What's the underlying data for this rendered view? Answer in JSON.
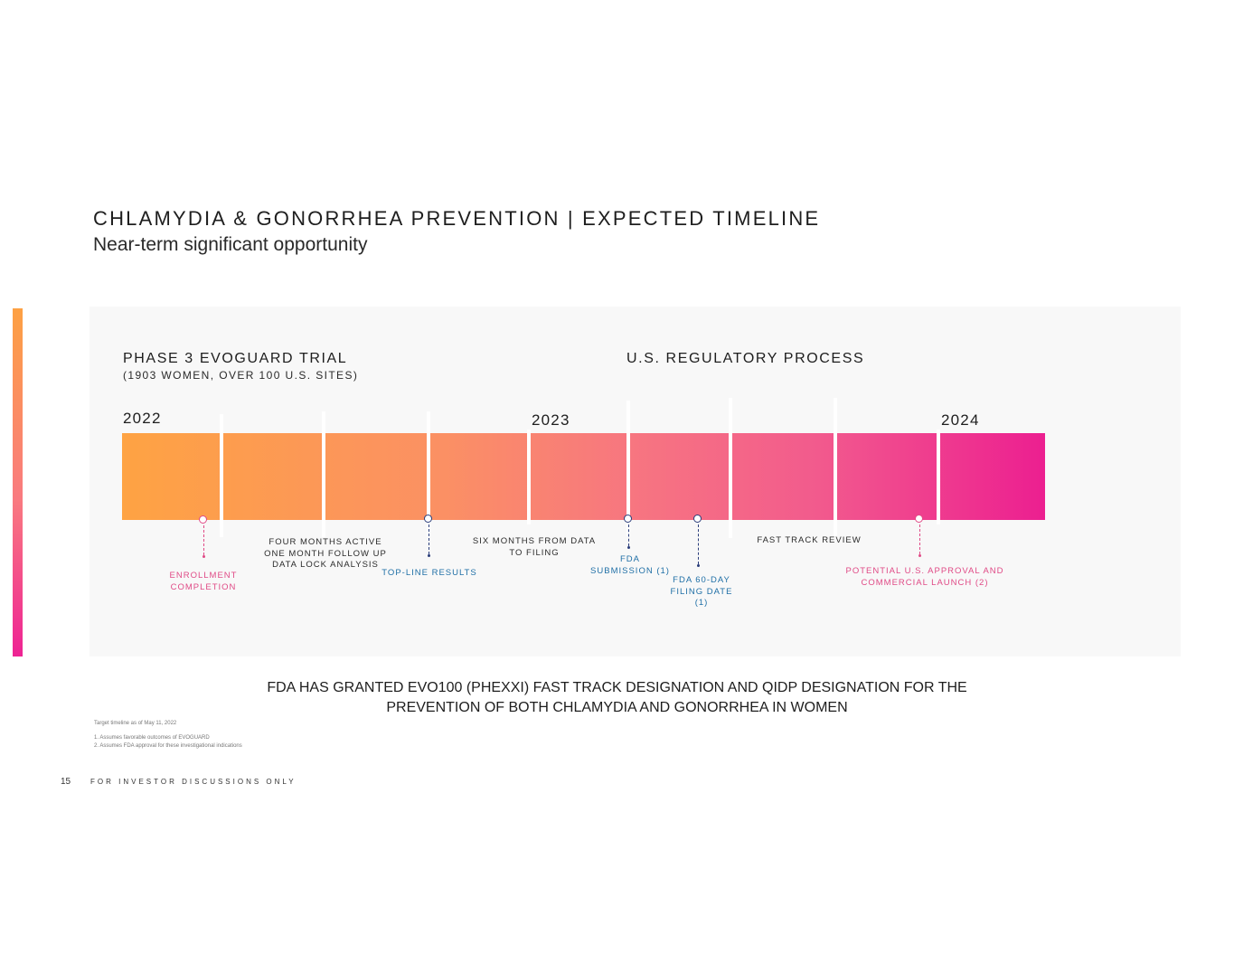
{
  "header": {
    "title": "CHLAMYDIA & GONORRHEA PREVENTION | EXPECTED TIMELINE",
    "subtitle": "Near-term significant opportunity"
  },
  "timeline": {
    "phase_title": "PHASE 3 EVOGUARD TRIAL",
    "phase_subtitle": "(1903 WOMEN, OVER 100 U.S. SITES)",
    "regulatory_title": "U.S. REGULATORY PROCESS",
    "years": [
      "2022",
      "2023",
      "2024"
    ],
    "labels": {
      "enrollment": "ENROLLMENT COMPLETION",
      "four_months": "FOUR MONTHS ACTIVE ONE MONTH FOLLOW UP DATA LOCK ANALYSIS",
      "topline": "TOP-LINE RESULTS",
      "six_months": "SIX MONTHS FROM DATA TO FILING",
      "fda_submission": "FDA SUBMISSION (1)",
      "fda_60day": "FDA 60-DAY FILING DATE (1)",
      "fast_track": "FAST TRACK REVIEW",
      "approval": "POTENTIAL U.S. APPROVAL AND COMMERCIAL LAUNCH (2)"
    },
    "colors": {
      "start": "#fea343",
      "end": "#ec1f90",
      "blue_label": "#1f6fa6",
      "pink_label": "#e04a86"
    }
  },
  "fda_note": "FDA HAS GRANTED EVO100 (PHEXXI) FAST TRACK DESIGNATION AND QIDP DESIGNATION FOR THE PREVENTION OF BOTH CHLAMYDIA AND GONORRHEA IN WOMEN",
  "footnotes": {
    "timeline_note": "Target timeline as of May 11, 2022",
    "note1": "1. Assumes favorable outcomes of EVOGUARD",
    "note2": "2. Assumes FDA approval for these investigational indications"
  },
  "footer": {
    "page_number": "15",
    "confidential": "FOR INVESTOR DISCUSSIONS ONLY"
  }
}
